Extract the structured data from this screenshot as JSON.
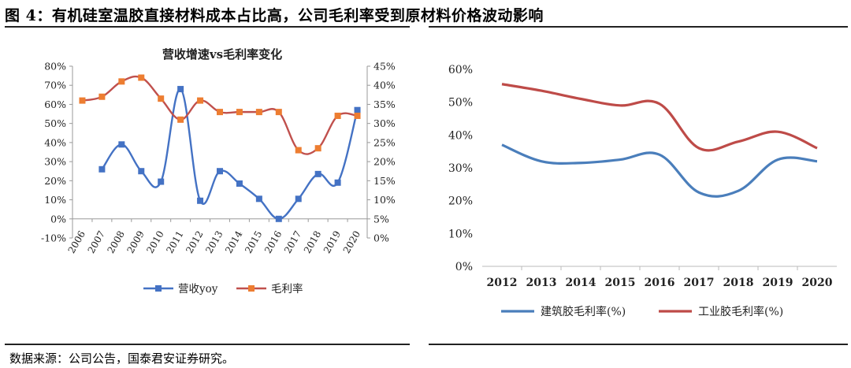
{
  "figure": {
    "title": "图 4：有机硅室温胶直接材料成本占比高，公司毛利率受到原材料价格波动影响",
    "source": "数据来源：公司公告，国泰君安证券研究。"
  },
  "chart_data": [
    {
      "type": "line",
      "title": "营收增速vs毛利率变化",
      "categories": [
        "2006",
        "2007",
        "2008",
        "2009",
        "2010",
        "2011",
        "2012",
        "2013",
        "2014",
        "2015",
        "2016",
        "2017",
        "2018",
        "2019",
        "2020"
      ],
      "y_left": {
        "ylim": [
          -0.1,
          0.8
        ],
        "ticks": [
          -0.1,
          0.0,
          0.1,
          0.2,
          0.3,
          0.4,
          0.5,
          0.6,
          0.7,
          0.8
        ],
        "tick_labels": [
          "-10%",
          "0%",
          "10%",
          "20%",
          "30%",
          "40%",
          "50%",
          "60%",
          "70%",
          "80%"
        ]
      },
      "y_right": {
        "ylim": [
          0.0,
          0.45
        ],
        "ticks": [
          0.0,
          0.05,
          0.1,
          0.15,
          0.2,
          0.25,
          0.3,
          0.35,
          0.4,
          0.45
        ],
        "tick_labels": [
          "0%",
          "5%",
          "10%",
          "15%",
          "20%",
          "25%",
          "30%",
          "35%",
          "40%",
          "45%"
        ]
      },
      "series": [
        {
          "name": "营收yoy",
          "axis": "left",
          "color": "#4472C4",
          "marker": "square",
          "values": [
            null,
            0.26,
            0.39,
            0.25,
            0.195,
            0.68,
            0.095,
            0.25,
            0.185,
            0.105,
            0.0,
            0.105,
            0.235,
            0.19,
            0.57
          ]
        },
        {
          "name": "毛利率",
          "axis": "right",
          "color": "#ED7D31",
          "line_color": "#C0504D",
          "marker": "square",
          "values": [
            0.36,
            0.37,
            0.41,
            0.42,
            0.365,
            0.31,
            0.36,
            0.33,
            0.33,
            0.33,
            0.33,
            0.23,
            0.235,
            0.32,
            0.32
          ]
        }
      ],
      "legend": "bottom"
    },
    {
      "type": "line",
      "categories": [
        "2012",
        "2013",
        "2014",
        "2015",
        "2016",
        "2017",
        "2018",
        "2019",
        "2020"
      ],
      "ylim": [
        0.0,
        0.6
      ],
      "ticks": [
        0.0,
        0.1,
        0.2,
        0.3,
        0.4,
        0.5,
        0.6
      ],
      "tick_labels": [
        "0%",
        "10%",
        "20%",
        "30%",
        "40%",
        "50%",
        "60%"
      ],
      "series": [
        {
          "name": "建筑胶毛利率(%)",
          "color": "#4A7EBB",
          "values": [
            0.37,
            0.32,
            0.315,
            0.325,
            0.34,
            0.225,
            0.23,
            0.325,
            0.32
          ]
        },
        {
          "name": "工业胶毛利率(%)",
          "color": "#BE4B48",
          "values": [
            0.555,
            0.535,
            0.51,
            0.49,
            0.495,
            0.36,
            0.38,
            0.41,
            0.36
          ]
        }
      ],
      "legend": "bottom"
    }
  ]
}
